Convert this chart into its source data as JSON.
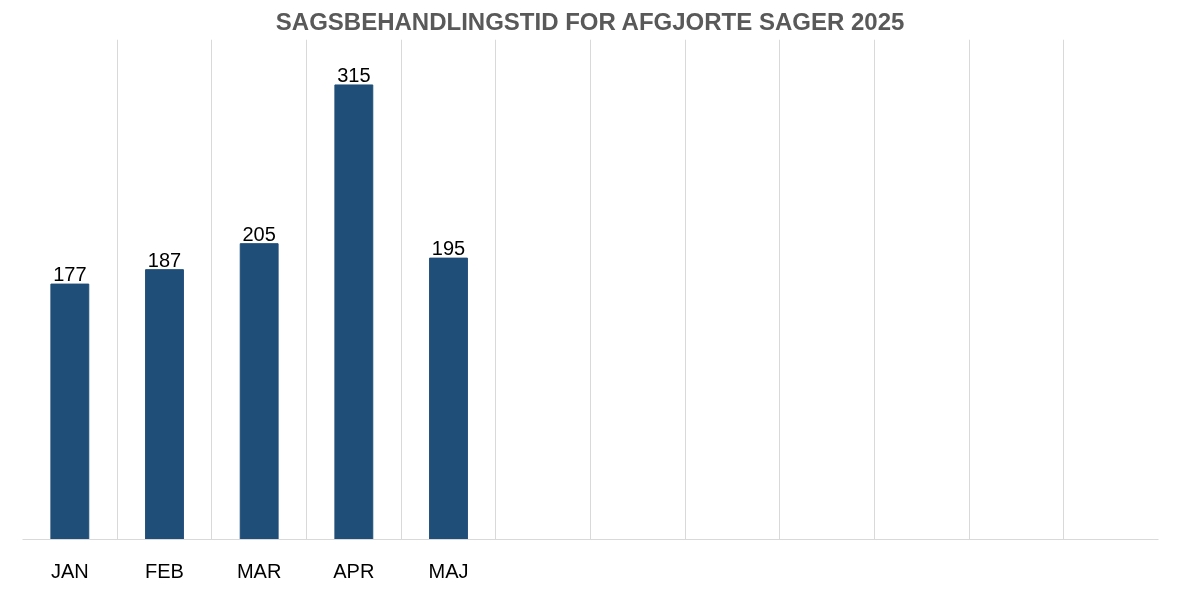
{
  "chart_data": {
    "type": "bar",
    "title": "SAGSBEHANDLINGSTID FOR AFGJORTE SAGER 2025",
    "categories": [
      "JAN",
      "FEB",
      "MAR",
      "APR",
      "MAJ",
      null,
      null,
      null,
      null,
      null,
      null,
      null
    ],
    "values": [
      177,
      187,
      205,
      315,
      195,
      null,
      null,
      null,
      null,
      null,
      null,
      null
    ],
    "color": "#1f4e79",
    "data_labels": true,
    "grid": "x"
  }
}
